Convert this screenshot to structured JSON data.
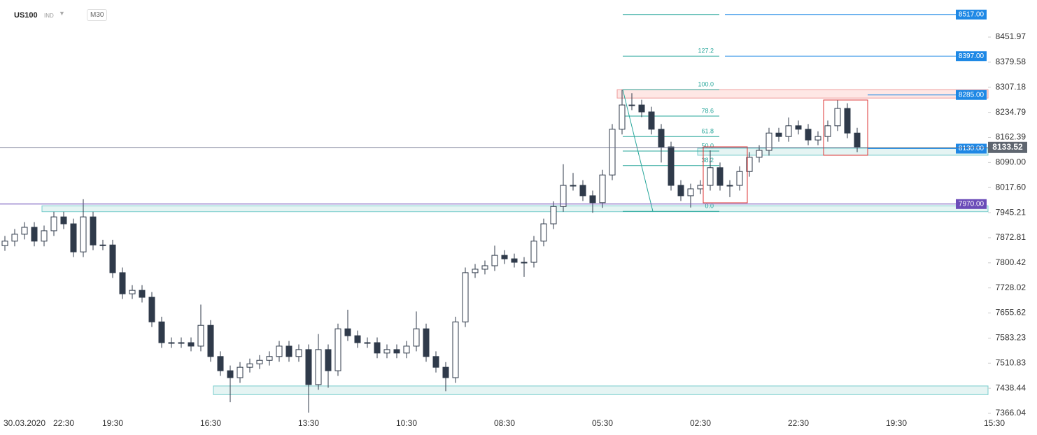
{
  "header": {
    "symbol": "US100",
    "market": "IND",
    "timeframe": "M30"
  },
  "chart_data": {
    "type": "candlestick",
    "categories": [
      null,
      null,
      "30.03.2020",
      null,
      null,
      null,
      "22:30",
      null,
      null,
      null,
      null,
      "19:30",
      null,
      null,
      null,
      null,
      null,
      null,
      null,
      null,
      null,
      "16:30",
      null,
      null,
      null,
      null,
      null,
      null,
      null,
      null,
      null,
      "13:30",
      null,
      null,
      null,
      null,
      null,
      null,
      null,
      null,
      null,
      "10:30",
      null,
      null,
      null,
      null,
      null,
      null,
      null,
      null,
      null,
      "08:30",
      null,
      null,
      null,
      null,
      null,
      null,
      null,
      null,
      null,
      "05:30",
      null,
      null,
      null,
      null,
      null,
      null,
      null,
      null,
      null,
      "02:30",
      null,
      null,
      null,
      null,
      null,
      null,
      null,
      null,
      null,
      "22:30",
      null,
      null,
      null,
      null,
      null,
      null,
      null,
      null,
      null,
      "19:30",
      null,
      null,
      null,
      null,
      null,
      null,
      null,
      null,
      null,
      "15:30"
    ],
    "open": [
      7850,
      7863,
      7883,
      7903,
      7863,
      7893,
      7933,
      7913,
      7832,
      7933,
      7852,
      7852,
      7772,
      7711,
      7721,
      7701,
      7630,
      7570,
      7570,
      7570,
      7560,
      7620,
      7530,
      7489,
      7469,
      7499,
      7509,
      7519,
      7530,
      7560,
      7530,
      7550,
      7449,
      7550,
      7489,
      7610,
      7590,
      7570,
      7570,
      7540,
      7550,
      7540,
      7560,
      7610,
      7530,
      7499,
      7469,
      7630,
      7772,
      7782,
      7792,
      7822,
      7812,
      7802,
      7802,
      7863,
      7913,
      7963,
      8024,
      8024,
      7994,
      7974,
      8054,
      8186,
      8256,
      8256,
      8236,
      8186,
      8135,
      8024,
      7994,
      8014,
      8024,
      8075,
      8024,
      8024,
      8064,
      8105,
      8125,
      8175,
      8165,
      8196,
      8186,
      8155,
      8165,
      8196,
      8246,
      8175,
      null,
      null,
      null,
      null,
      null,
      null,
      null,
      null,
      null,
      null,
      null,
      null,
      null,
      null
    ],
    "high": [
      7878,
      7898,
      7918,
      7918,
      7908,
      7948,
      7948,
      7928,
      7984,
      7948,
      7867,
      7867,
      7787,
      7736,
      7736,
      7716,
      7645,
      7585,
      7585,
      7585,
      7680,
      7635,
      7545,
      7504,
      7514,
      7524,
      7534,
      7545,
      7575,
      7575,
      7565,
      7565,
      7595,
      7565,
      7625,
      7665,
      7605,
      7585,
      7585,
      7565,
      7565,
      7575,
      7660,
      7625,
      7545,
      7514,
      7645,
      7787,
      7797,
      7807,
      7850,
      7837,
      7827,
      7817,
      7878,
      7928,
      7978,
      8085,
      8060,
      8039,
      8009,
      8069,
      8201,
      8300,
      8290,
      8271,
      8251,
      8201,
      8150,
      8039,
      8029,
      8039,
      8125,
      8090,
      8039,
      8079,
      8120,
      8140,
      8190,
      8190,
      8220,
      8211,
      8201,
      8180,
      8211,
      8270,
      8261,
      8190,
      null,
      null,
      null,
      null,
      null,
      null,
      null,
      null,
      null,
      null,
      null,
      null,
      null,
      null
    ],
    "low": [
      7835,
      7848,
      7868,
      7848,
      7848,
      7878,
      7898,
      7817,
      7817,
      7837,
      7837,
      7757,
      7696,
      7696,
      7686,
      7615,
      7555,
      7555,
      7555,
      7545,
      7545,
      7515,
      7474,
      7398,
      7454,
      7484,
      7494,
      7504,
      7515,
      7515,
      7515,
      7368,
      7434,
      7440,
      7474,
      7575,
      7555,
      7555,
      7525,
      7525,
      7525,
      7525,
      7545,
      7515,
      7484,
      7430,
      7454,
      7615,
      7757,
      7767,
      7777,
      7797,
      7787,
      7760,
      7787,
      7848,
      7898,
      7948,
      8009,
      7979,
      7945,
      7959,
      8039,
      8171,
      8241,
      8221,
      8171,
      8090,
      8009,
      7979,
      7960,
      7999,
      8009,
      8009,
      7990,
      8009,
      8049,
      8090,
      8110,
      8150,
      8150,
      8171,
      8140,
      8140,
      8150,
      8181,
      8160,
      8120,
      null,
      null,
      null,
      null,
      null,
      null,
      null,
      null,
      null,
      null,
      null,
      null,
      null,
      null
    ],
    "close": [
      7863,
      7883,
      7903,
      7863,
      7893,
      7933,
      7913,
      7832,
      7933,
      7852,
      7852,
      7772,
      7711,
      7721,
      7701,
      7630,
      7570,
      7570,
      7570,
      7560,
      7620,
      7530,
      7489,
      7469,
      7499,
      7509,
      7519,
      7530,
      7560,
      7530,
      7550,
      7449,
      7550,
      7489,
      7610,
      7590,
      7570,
      7570,
      7540,
      7550,
      7540,
      7560,
      7610,
      7530,
      7499,
      7469,
      7630,
      7772,
      7782,
      7792,
      7822,
      7812,
      7802,
      7802,
      7863,
      7913,
      7963,
      8024,
      8024,
      7994,
      7974,
      8054,
      8186,
      8256,
      8256,
      8236,
      8186,
      8135,
      8024,
      7994,
      8014,
      8024,
      8075,
      8024,
      8024,
      8064,
      8105,
      8125,
      8175,
      8165,
      8196,
      8186,
      8155,
      8165,
      8196,
      8246,
      8175,
      8135,
      null,
      null,
      null,
      null,
      null,
      null,
      null,
      null,
      null,
      null,
      null,
      null,
      null,
      null
    ],
    "color": "#2f3a4a",
    "ylim": [
      7358,
      8559
    ],
    "yticks": [
      8451.97,
      8379.58,
      8307.18,
      8234.79,
      8162.39,
      {
        "value": 8090,
        "label": "8090.00"
      },
      {
        "value": 8017.6,
        "label": "8017.60"
      },
      7945.21,
      7872.81,
      7800.42,
      7728.02,
      7655.62,
      7583.23,
      7510.83,
      7438.44,
      7366.04
    ],
    "levels": [
      {
        "value": 8517,
        "label": "8517.00",
        "color": "#1e88e5"
      },
      {
        "value": 8397,
        "label": "8397.00",
        "color": "#1e88e5"
      },
      {
        "value": 8285,
        "label": "8285.00",
        "color": "#1e88e5"
      },
      {
        "value": 8130,
        "label": "8130.00",
        "color": "#1e88e5"
      },
      {
        "value": 7970,
        "label": "7970.00",
        "color": "#6a4cb8"
      }
    ],
    "last_price": {
      "value": 8133.52,
      "label": "8133.52",
      "color": "#5f6670"
    },
    "fib": [
      {
        "level": "127.2",
        "price": 8397
      },
      {
        "level": "100.0",
        "price": 8300
      },
      {
        "level": "78.6",
        "price": 8224
      },
      {
        "level": "61.8",
        "price": 8165
      },
      {
        "level": "50.0",
        "price": 8123
      },
      {
        "level": "38.2",
        "price": 8081
      },
      {
        "level": "0.0",
        "price": 7949
      }
    ]
  }
}
